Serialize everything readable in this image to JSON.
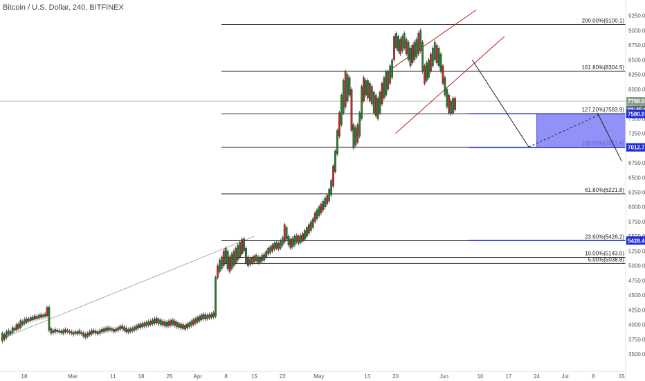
{
  "chart_data": {
    "type": "candlestick",
    "title": "Bitcoin / U.S. Dollar, 240, BITFINEX",
    "ylim": [
      3300,
      9400
    ],
    "y_ticks": [
      "3500.0",
      "3750.0",
      "4000.0",
      "4250.0",
      "4500.0",
      "4750.0",
      "5000.0",
      "5250.0",
      "5500.0",
      "5750.0",
      "6000.0",
      "6250.0",
      "6500.0",
      "6750.0",
      "7000.0",
      "7250.0",
      "7500.0",
      "7750.0",
      "8000.0",
      "8250.0",
      "8500.0",
      "8750.0",
      "9000.0",
      "9250.0"
    ],
    "x_ticks": [
      "18",
      "Mar",
      "11",
      "18",
      "25",
      "Apr",
      "8",
      "15",
      "22",
      "May",
      "13",
      "20",
      "Jun",
      "10",
      "17",
      "24",
      "Jul",
      "8",
      "15"
    ],
    "x_tick_days": [
      -12,
      0,
      10,
      17,
      24,
      31,
      38,
      45,
      52,
      61,
      73,
      80,
      92,
      101,
      108,
      115,
      122,
      129,
      136
    ],
    "x_start_day": -18,
    "x_end_day": 137,
    "fib_levels": [
      {
        "label": "200.00%(9100.1)",
        "value": 9100.1
      },
      {
        "label": "161.80%(8304.5)",
        "value": 8304.5
      },
      {
        "label": "127.20%(7583.9)",
        "value": 7583.9
      },
      {
        "label": "100.00%(7017.4)",
        "value": 7017.4
      },
      {
        "label": "61.80%(6221.8)",
        "value": 6221.8
      },
      {
        "label": "23.60%(5426.2)",
        "value": 5426.2
      },
      {
        "label": "10.00%(5143.0)",
        "value": 5143.0
      },
      {
        "label": "5.00%(5038.8)",
        "value": 5038.8
      }
    ],
    "price_badges": [
      {
        "label": "7798.0",
        "value": 7798.0,
        "color": "#8a9c8a"
      },
      {
        "label": "02:45:04",
        "value": 7650,
        "color": "#5d6d80"
      },
      {
        "label": "7580.0",
        "value": 7580,
        "color": "#1e2bd6"
      },
      {
        "label": "7012.7",
        "value": 7012.7,
        "color": "#1e2bd6"
      },
      {
        "label": "5428.4",
        "value": 5428.4,
        "color": "#1e2bd6"
      }
    ],
    "current_price": 7798.0,
    "target_zone": {
      "from_day": 115,
      "to_day": 137,
      "low": 7012.7,
      "high": 7583.9,
      "color": "#6c6cf5"
    },
    "candles_ohlc": [
      [
        3720,
        3850
      ],
      [
        3750,
        3830
      ],
      [
        3780,
        3880
      ],
      [
        3830,
        3900
      ],
      [
        3840,
        3880
      ],
      [
        3860,
        3950
      ],
      [
        3900,
        3940
      ],
      [
        3910,
        4000
      ],
      [
        3930,
        4010
      ],
      [
        3950,
        4070
      ],
      [
        4000,
        4050
      ],
      [
        4020,
        4090
      ],
      [
        4040,
        4100
      ],
      [
        4060,
        4100
      ],
      [
        4070,
        4120
      ],
      [
        4080,
        4130
      ],
      [
        4090,
        4150
      ],
      [
        4100,
        4140
      ],
      [
        4110,
        4160
      ],
      [
        4120,
        4170
      ],
      [
        4130,
        4160
      ],
      [
        4140,
        4180
      ],
      [
        4150,
        4290
      ],
      [
        3900,
        4300
      ],
      [
        3850,
        3930
      ],
      [
        3860,
        3900
      ],
      [
        3870,
        3920
      ],
      [
        3880,
        3910
      ],
      [
        3870,
        3900
      ],
      [
        3860,
        3890
      ],
      [
        3850,
        3900
      ],
      [
        3870,
        3920
      ],
      [
        3880,
        3900
      ],
      [
        3860,
        3890
      ],
      [
        3850,
        3880
      ],
      [
        3830,
        3870
      ],
      [
        3850,
        3880
      ],
      [
        3840,
        3880
      ],
      [
        3850,
        3900
      ],
      [
        3840,
        3870
      ],
      [
        3800,
        3860
      ],
      [
        3780,
        3840
      ],
      [
        3800,
        3850
      ],
      [
        3820,
        3880
      ],
      [
        3840,
        3900
      ],
      [
        3860,
        3900
      ],
      [
        3850,
        3890
      ],
      [
        3840,
        3880
      ],
      [
        3850,
        3900
      ],
      [
        3870,
        3920
      ],
      [
        3880,
        3930
      ],
      [
        3890,
        3940
      ],
      [
        3900,
        3950
      ],
      [
        3910,
        3940
      ],
      [
        3900,
        3930
      ],
      [
        3880,
        3920
      ],
      [
        3890,
        3930
      ],
      [
        3900,
        3950
      ],
      [
        3920,
        3970
      ],
      [
        3930,
        3980
      ],
      [
        3900,
        3960
      ],
      [
        3880,
        3940
      ],
      [
        3870,
        3920
      ],
      [
        3880,
        3930
      ],
      [
        3890,
        3940
      ],
      [
        3900,
        3960
      ],
      [
        3920,
        3980
      ],
      [
        3940,
        4000
      ],
      [
        3950,
        4010
      ],
      [
        3960,
        4020
      ],
      [
        3970,
        4030
      ],
      [
        3980,
        4040
      ],
      [
        3990,
        4050
      ],
      [
        4000,
        4060
      ],
      [
        4010,
        4080
      ],
      [
        4020,
        4100
      ],
      [
        4030,
        4110
      ],
      [
        4010,
        4090
      ],
      [
        4000,
        4080
      ],
      [
        3990,
        4060
      ],
      [
        3980,
        4050
      ],
      [
        3970,
        4040
      ],
      [
        3980,
        4060
      ],
      [
        3990,
        4070
      ],
      [
        4000,
        4080
      ],
      [
        3980,
        4060
      ],
      [
        3960,
        4040
      ],
      [
        3950,
        4020
      ],
      [
        3940,
        4010
      ],
      [
        3930,
        4000
      ],
      [
        3920,
        3990
      ],
      [
        3940,
        4010
      ],
      [
        3960,
        4030
      ],
      [
        3980,
        4050
      ],
      [
        4000,
        4080
      ],
      [
        4020,
        4100
      ],
      [
        4040,
        4120
      ],
      [
        4060,
        4140
      ],
      [
        4080,
        4160
      ],
      [
        4100,
        4180
      ],
      [
        4090,
        4170
      ],
      [
        4100,
        4160
      ],
      [
        4110,
        4170
      ],
      [
        4120,
        4180
      ],
      [
        4130,
        4200
      ],
      [
        4140,
        4800
      ],
      [
        4800,
        5000
      ],
      [
        4900,
        5100
      ],
      [
        4950,
        5150
      ],
      [
        5000,
        5250
      ],
      [
        5050,
        5300
      ],
      [
        4950,
        5250
      ],
      [
        4900,
        5150
      ],
      [
        4950,
        5200
      ],
      [
        5000,
        5250
      ],
      [
        5050,
        5300
      ],
      [
        5100,
        5350
      ],
      [
        5150,
        5400
      ],
      [
        5200,
        5450
      ],
      [
        5250,
        5460
      ],
      [
        5050,
        5300
      ],
      [
        5000,
        5150
      ],
      [
        5020,
        5120
      ],
      [
        5040,
        5140
      ],
      [
        5060,
        5160
      ],
      [
        5080,
        5180
      ],
      [
        5050,
        5150
      ],
      [
        5060,
        5140
      ],
      [
        5080,
        5180
      ],
      [
        5100,
        5200
      ],
      [
        5150,
        5250
      ],
      [
        5200,
        5300
      ],
      [
        5220,
        5320
      ],
      [
        5250,
        5350
      ],
      [
        5280,
        5380
      ],
      [
        5300,
        5400
      ],
      [
        5280,
        5380
      ],
      [
        5300,
        5420
      ],
      [
        5350,
        5480
      ],
      [
        5400,
        5700
      ],
      [
        5450,
        5650
      ],
      [
        5350,
        5500
      ],
      [
        5300,
        5450
      ],
      [
        5320,
        5470
      ],
      [
        5350,
        5500
      ],
      [
        5400,
        5520
      ],
      [
        5380,
        5500
      ],
      [
        5400,
        5520
      ],
      [
        5420,
        5550
      ],
      [
        5450,
        5600
      ],
      [
        5500,
        5650
      ],
      [
        5550,
        5700
      ],
      [
        5600,
        5750
      ],
      [
        5650,
        5800
      ],
      [
        5750,
        5900
      ],
      [
        5800,
        5950
      ],
      [
        5850,
        6000
      ],
      [
        5900,
        6050
      ],
      [
        5950,
        6100
      ],
      [
        6000,
        6150
      ],
      [
        6050,
        6200
      ],
      [
        6100,
        6300
      ],
      [
        6200,
        6450
      ],
      [
        6350,
        6700
      ],
      [
        6600,
        6950
      ],
      [
        6900,
        7300
      ],
      [
        7200,
        7600
      ],
      [
        7400,
        7900
      ],
      [
        7600,
        8150
      ],
      [
        7700,
        8300
      ],
      [
        7800,
        8250
      ],
      [
        7900,
        8200
      ],
      [
        7300,
        8000
      ],
      [
        7000,
        7400
      ],
      [
        7050,
        7350
      ],
      [
        7100,
        7400
      ],
      [
        7200,
        7600
      ],
      [
        7500,
        8050
      ],
      [
        7800,
        8200
      ],
      [
        7900,
        8150
      ],
      [
        7850,
        8150
      ],
      [
        7800,
        8100
      ],
      [
        7750,
        8050
      ],
      [
        7600,
        7950
      ],
      [
        7550,
        7900
      ],
      [
        7500,
        7850
      ],
      [
        7600,
        7950
      ],
      [
        7750,
        8100
      ],
      [
        7850,
        8200
      ],
      [
        7900,
        8300
      ],
      [
        8000,
        8300
      ],
      [
        8100,
        8400
      ],
      [
        8200,
        8500
      ],
      [
        8500,
        8900
      ],
      [
        8700,
        8950
      ],
      [
        8650,
        8900
      ],
      [
        8600,
        8850
      ],
      [
        8650,
        8900
      ],
      [
        8700,
        8950
      ],
      [
        8600,
        8850
      ],
      [
        8500,
        8800
      ],
      [
        8400,
        8700
      ],
      [
        8450,
        8750
      ],
      [
        8500,
        8800
      ],
      [
        8550,
        8850
      ],
      [
        8600,
        8950
      ],
      [
        8650,
        9000
      ],
      [
        8300,
        8800
      ],
      [
        8100,
        8400
      ],
      [
        8150,
        8450
      ],
      [
        8200,
        8500
      ],
      [
        8300,
        8600
      ],
      [
        8400,
        8700
      ],
      [
        8500,
        8800
      ],
      [
        8450,
        8750
      ],
      [
        8400,
        8700
      ],
      [
        8300,
        8600
      ],
      [
        8100,
        8400
      ],
      [
        7900,
        8200
      ],
      [
        7700,
        8000
      ],
      [
        7600,
        7900
      ],
      [
        7580,
        7800
      ],
      [
        7600,
        7850
      ],
      [
        7650,
        7850
      ]
    ],
    "price_trendline": [
      [
        -18,
        3750
      ],
      [
        45,
        5500
      ]
    ],
    "channel_upper": [
      [
        79,
        8350
      ],
      [
        100,
        9350
      ]
    ],
    "channel_lower": [
      [
        80,
        7250
      ],
      [
        107,
        8900
      ]
    ],
    "projection_solid": [
      [
        99,
        8500
      ],
      [
        113,
        7020
      ],
      [
        113,
        7020
      ]
    ],
    "projection_dashed": [
      [
        113,
        7020
      ],
      [
        131,
        7583
      ]
    ],
    "projection_drop": [
      [
        130,
        7600
      ],
      [
        136,
        6780
      ]
    ]
  }
}
